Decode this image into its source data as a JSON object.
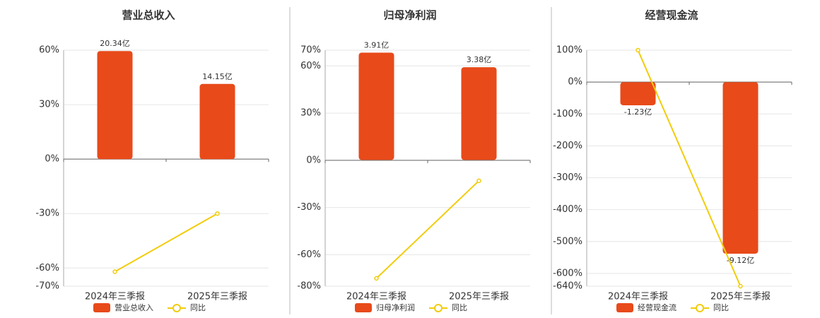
{
  "chart_data": [
    {
      "type": "bar-line",
      "title": "营业总收入",
      "categories": [
        "2024年三季报",
        "2025年三季报"
      ],
      "series": [
        {
          "name": "营业总收入",
          "color": "#e84a1a",
          "axis": "y2",
          "values": [
            20.34,
            14.15
          ],
          "value_labels": [
            "20.34亿",
            "14.15亿"
          ]
        },
        {
          "name": "同比",
          "color": "#f2cc0c",
          "axis": "y",
          "values": [
            -62,
            -30
          ]
        }
      ],
      "ylim": [
        -70,
        60
      ],
      "yticks": [
        {
          "value": 60,
          "label": "60%"
        },
        {
          "value": 30,
          "label": "30%"
        },
        {
          "value": 0,
          "label": "0%"
        },
        {
          "value": -30,
          "label": "-30%"
        },
        {
          "value": -60,
          "label": "-60%"
        },
        {
          "value": -70,
          "label": "-70%"
        }
      ],
      "y2lim": [
        -23.9,
        20.5
      ],
      "grid": true
    },
    {
      "type": "bar-line",
      "title": "归母净利润",
      "categories": [
        "2024年三季报",
        "2025年三季报"
      ],
      "series": [
        {
          "name": "归母净利润",
          "color": "#e84a1a",
          "axis": "y2",
          "values": [
            3.91,
            3.38
          ],
          "value_labels": [
            "3.91亿",
            "3.38亿"
          ]
        },
        {
          "name": "同比",
          "color": "#f2cc0c",
          "axis": "y",
          "values": [
            -75,
            -13
          ]
        }
      ],
      "ylim": [
        -80,
        70
      ],
      "yticks": [
        {
          "value": 70,
          "label": "70%"
        },
        {
          "value": 60,
          "label": "60%"
        },
        {
          "value": 30,
          "label": "30%"
        },
        {
          "value": 0,
          "label": "0%"
        },
        {
          "value": -30,
          "label": "-30%"
        },
        {
          "value": -60,
          "label": "-60%"
        },
        {
          "value": -80,
          "label": "-80%"
        }
      ],
      "y2lim": [
        -4.6,
        4.0
      ],
      "grid": true
    },
    {
      "type": "bar-line",
      "title": "经营现金流",
      "categories": [
        "2024年三季报",
        "2025年三季报"
      ],
      "series": [
        {
          "name": "经营现金流",
          "color": "#e84a1a",
          "axis": "y2",
          "values": [
            -1.23,
            -9.12
          ],
          "value_labels": [
            "-1.23亿",
            "-9.12亿"
          ]
        },
        {
          "name": "同比",
          "color": "#f2cc0c",
          "axis": "y",
          "values": [
            100,
            -640
          ]
        }
      ],
      "ylim": [
        -640,
        100
      ],
      "yticks": [
        {
          "value": 100,
          "label": "100%"
        },
        {
          "value": 0,
          "label": "0%"
        },
        {
          "value": -100,
          "label": "-100%"
        },
        {
          "value": -200,
          "label": "-200%"
        },
        {
          "value": -300,
          "label": "-300%"
        },
        {
          "value": -400,
          "label": "-400%"
        },
        {
          "value": -500,
          "label": "-500%"
        },
        {
          "value": -600,
          "label": "-600%"
        },
        {
          "value": -640,
          "label": "-640%"
        }
      ],
      "y2lim": [
        -10.85,
        1.7
      ],
      "grid": true
    }
  ]
}
